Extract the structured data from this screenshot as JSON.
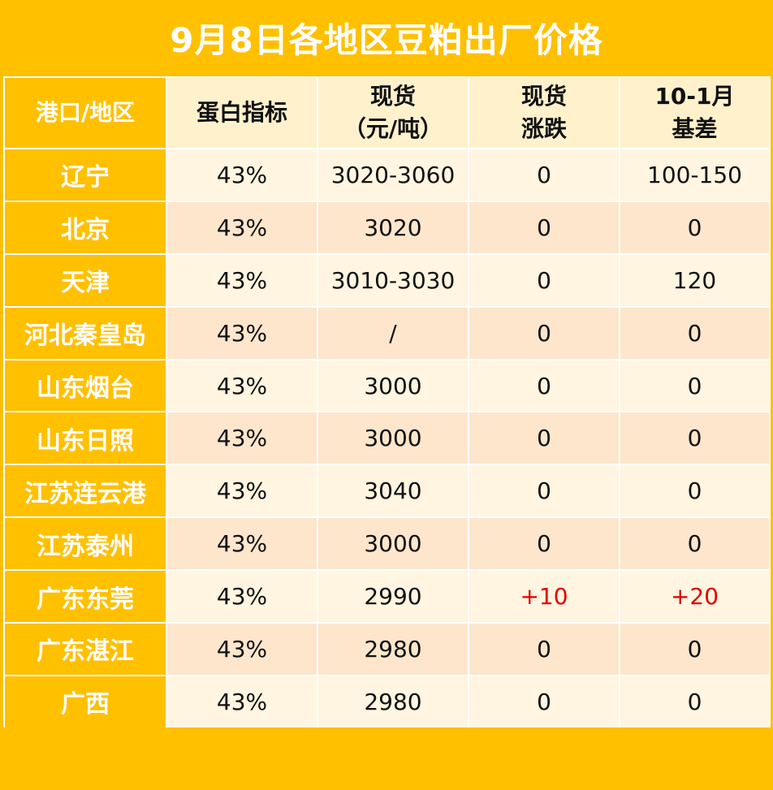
{
  "title": "9月8日各地区豆粕出厂价格",
  "table": {
    "headers": {
      "region": "港口/地区",
      "protein": "蛋白指标",
      "spot_line1": "现货",
      "spot_line2": "（元/吨）",
      "change_line1": "现货",
      "change_line2": "涨跌",
      "basis_line1": "10-1月",
      "basis_line2": "基差"
    },
    "rows": [
      {
        "region": "辽宁",
        "protein": "43%",
        "spot": "3020-3060",
        "change": "0",
        "basis": "100-150"
      },
      {
        "region": "北京",
        "protein": "43%",
        "spot": "3020",
        "change": "0",
        "basis": "0"
      },
      {
        "region": "天津",
        "protein": "43%",
        "spot": "3010-3030",
        "change": "0",
        "basis": "120"
      },
      {
        "region": "河北秦皇岛",
        "protein": "43%",
        "spot": "/",
        "change": "0",
        "basis": "0"
      },
      {
        "region": "山东烟台",
        "protein": "43%",
        "spot": "3000",
        "change": "0",
        "basis": "0"
      },
      {
        "region": "山东日照",
        "protein": "43%",
        "spot": "3000",
        "change": "0",
        "basis": "0"
      },
      {
        "region": "江苏连云港",
        "protein": "43%",
        "spot": "3040",
        "change": "0",
        "basis": "0"
      },
      {
        "region": "江苏泰州",
        "protein": "43%",
        "spot": "3000",
        "change": "0",
        "basis": "0"
      },
      {
        "region": "广东东莞",
        "protein": "43%",
        "spot": "2990",
        "change": "+10",
        "basis": "+20"
      },
      {
        "region": "广东湛江",
        "protein": "43%",
        "spot": "2980",
        "change": "0",
        "basis": "0"
      },
      {
        "region": "广西",
        "protein": "43%",
        "spot": "2980",
        "change": "0",
        "basis": "0"
      }
    ]
  },
  "colors": {
    "header_fill": "#ffc000",
    "row_light": "#fff5e0",
    "row_dark": "#fde6cc",
    "up_value": "#e00000"
  }
}
